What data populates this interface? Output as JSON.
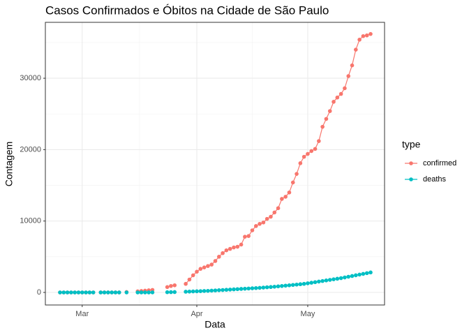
{
  "chart_data": {
    "type": "line",
    "title": "Casos Confirmados e Óbitos na Cidade de São Paulo",
    "x_label": "Data",
    "y_label": "Contagem",
    "legend_title": "type",
    "legend_position": "right",
    "grid": true,
    "categories": [
      null,
      null,
      null,
      null,
      null,
      null,
      "Mar",
      null,
      null,
      null,
      null,
      null,
      null,
      null,
      null,
      null,
      null,
      null,
      null,
      null,
      null,
      null,
      null,
      null,
      null,
      null,
      null,
      null,
      null,
      null,
      null,
      null,
      null,
      null,
      null,
      null,
      null,
      "Apr",
      null,
      null,
      null,
      null,
      null,
      null,
      null,
      null,
      null,
      null,
      null,
      null,
      null,
      null,
      null,
      null,
      null,
      null,
      null,
      null,
      null,
      null,
      null,
      null,
      null,
      null,
      null,
      null,
      null,
      "May",
      null,
      null,
      null,
      null,
      null,
      null,
      null,
      null,
      null,
      null,
      null,
      null,
      null,
      null,
      null,
      null,
      null
    ],
    "ylim": [
      -1760,
      37830
    ],
    "yticks": [
      0,
      10000,
      20000,
      30000
    ],
    "series": [
      {
        "name": "confirmed",
        "color": "#F8766D",
        "values": [
          0,
          0,
          0,
          0,
          0,
          0,
          0,
          0,
          0,
          0,
          null,
          1,
          1,
          2,
          2,
          3,
          3,
          null,
          50,
          null,
          null,
          150,
          200,
          250,
          300,
          350,
          null,
          null,
          null,
          750,
          900,
          1000,
          null,
          null,
          1200,
          1800,
          2400,
          2900,
          3300,
          3500,
          3700,
          3900,
          4400,
          5000,
          5500,
          5900,
          6100,
          6300,
          6400,
          6700,
          7800,
          7900,
          8700,
          9300,
          9600,
          9800,
          10300,
          10600,
          11200,
          11800,
          13100,
          13400,
          14000,
          15400,
          16600,
          18100,
          19000,
          19400,
          19800,
          20100,
          21200,
          23200,
          24300,
          25400,
          26700,
          27300,
          27800,
          28600,
          30300,
          31800,
          34000,
          35400,
          35900,
          36000,
          36200
        ]
      },
      {
        "name": "deaths",
        "color": "#00BFC4",
        "values": [
          0,
          0,
          0,
          0,
          0,
          0,
          0,
          0,
          0,
          0,
          null,
          0,
          0,
          0,
          0,
          0,
          0,
          null,
          0,
          null,
          null,
          0,
          1,
          2,
          3,
          5,
          null,
          null,
          null,
          30,
          40,
          50,
          null,
          null,
          100,
          120,
          140,
          160,
          180,
          200,
          220,
          250,
          280,
          310,
          340,
          370,
          400,
          430,
          460,
          490,
          520,
          550,
          580,
          610,
          640,
          680,
          720,
          760,
          800,
          850,
          900,
          950,
          1000,
          1050,
          1100,
          1150,
          1200,
          1280,
          1360,
          1440,
          1520,
          1600,
          1680,
          1760,
          1840,
          1920,
          2000,
          2100,
          2200,
          2300,
          2400,
          2500,
          2600,
          2700,
          2800
        ]
      }
    ]
  }
}
